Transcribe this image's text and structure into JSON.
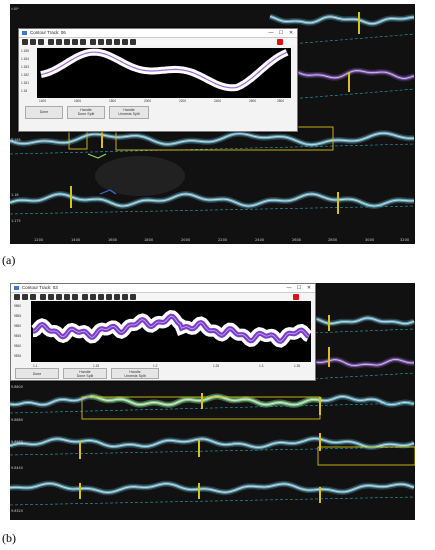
{
  "panels": [
    {
      "label": "(a)",
      "y_exponent": "×10⁴",
      "x_ticks": [
        "1200",
        "1400",
        "1600",
        "1800",
        "2000",
        "2200",
        "2400",
        "2600",
        "2800",
        "3000",
        "3200"
      ],
      "y_ticks": [
        "1.185",
        "1.18",
        "1.175"
      ],
      "window": {
        "title": "Contour Track: 06",
        "btn_minimize": "—",
        "btn_maximize": "☐",
        "btn_close": "✕",
        "x_ticks": [
          "1400",
          "1600",
          "1800",
          "2000",
          "2200",
          "2400",
          "2600",
          "2800"
        ],
        "y_ticks": [
          "1.185",
          "1.184",
          "1.183",
          "1.182",
          "1.181",
          "1.18"
        ],
        "controls": [
          {
            "label": "Done"
          },
          {
            "label": "Handle\nDone Split"
          },
          {
            "label": "Handle\nUnnests Split"
          }
        ]
      }
    },
    {
      "label": "(b)",
      "y_exponent": "×10⁴",
      "x_ticks": [],
      "y_ticks": [
        "9.8800",
        "9.8680",
        "9.8560",
        "9.8440",
        "9.8320"
      ],
      "window": {
        "title": "Contour Track: 03",
        "btn_minimize": "—",
        "btn_maximize": "☐",
        "btn_close": "✕",
        "x_ticks": [
          "1.1",
          "1.15",
          "1.2",
          "1.25",
          "1.3",
          "1.35"
        ],
        "y_ticks": [
          "9860",
          "9855",
          "9850",
          "9845",
          "9840",
          "9835"
        ],
        "controls": [
          {
            "label": "Done"
          },
          {
            "label": "Handle\nDone Split"
          },
          {
            "label": "Handle\nUnnests Split"
          }
        ]
      }
    }
  ],
  "colors": {
    "background": "#111111",
    "contour_cyan": "#7fd3e8",
    "contour_purple": "#9a6bd6",
    "contour_green": "#8fd36a",
    "box_yellow": "#d8c21a",
    "dashed": "#2aa6b8",
    "close_red": "#e02020"
  }
}
